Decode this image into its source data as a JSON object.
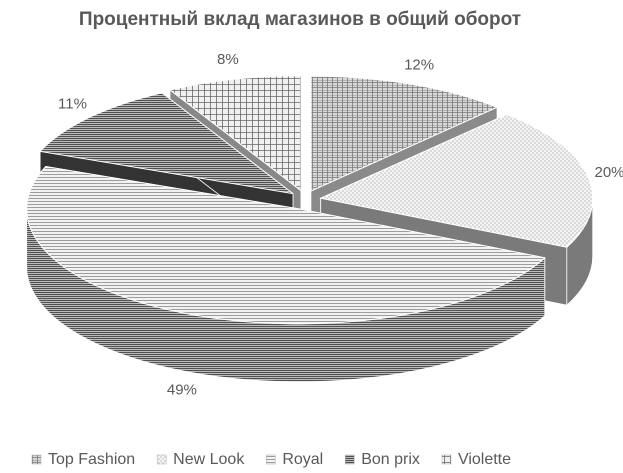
{
  "chart_data": {
    "type": "pie",
    "title": "Процентный вклад магазинов в общий оборот",
    "categories": [
      "Top Fashion",
      "New Look",
      "Royal",
      "Bon prix",
      "Violette"
    ],
    "values": [
      12,
      20,
      49,
      11,
      8
    ],
    "value_labels": [
      "12%",
      "20%",
      "49%",
      "11%",
      "8%"
    ],
    "legend": "bottom"
  }
}
